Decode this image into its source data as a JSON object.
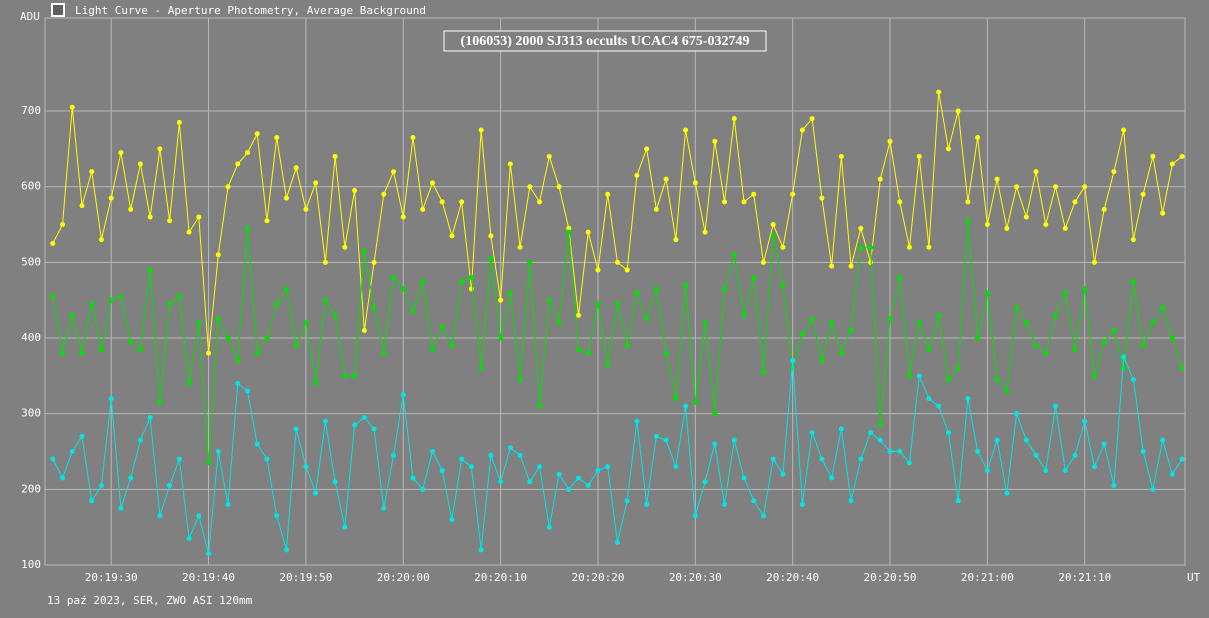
{
  "window_title": "Light Curve - Aperture Photometry, Average Background",
  "footer": "13 paź 2023, SER, ZWO ASI 120mm",
  "chart_data": {
    "type": "line",
    "title": "(106053) 2000 SJ313 occults UCAC4 675-032749",
    "y_label": "ADU",
    "x_label": "UT",
    "grid": true,
    "xlim": [
      73163.2,
      73280.3
    ],
    "ylim": [
      100,
      823
    ],
    "xticks": [
      {
        "value": 73170,
        "label": "20:19:30"
      },
      {
        "value": 73180,
        "label": "20:19:40"
      },
      {
        "value": 73190,
        "label": "20:19:50"
      },
      {
        "value": 73200,
        "label": "20:20:00"
      },
      {
        "value": 73210,
        "label": "20:20:10"
      },
      {
        "value": 73220,
        "label": "20:20:20"
      },
      {
        "value": 73230,
        "label": "20:20:30"
      },
      {
        "value": 73240,
        "label": "20:20:40"
      },
      {
        "value": 73250,
        "label": "20:20:50"
      },
      {
        "value": 73260,
        "label": "20:21:00"
      },
      {
        "value": 73270,
        "label": "20:21:10"
      }
    ],
    "yticks": [
      100,
      200,
      300,
      400,
      500,
      600,
      700
    ],
    "x": [
      73164,
      73165,
      73166,
      73167,
      73168,
      73169,
      73170,
      73171,
      73172,
      73173,
      73174,
      73175,
      73176,
      73177,
      73178,
      73179,
      73180,
      73181,
      73182,
      73183,
      73184,
      73185,
      73186,
      73187,
      73188,
      73189,
      73190,
      73191,
      73192,
      73193,
      73194,
      73195,
      73196,
      73197,
      73198,
      73199,
      73200,
      73201,
      73202,
      73203,
      73204,
      73205,
      73206,
      73207,
      73208,
      73209,
      73210,
      73211,
      73212,
      73213,
      73214,
      73215,
      73216,
      73217,
      73218,
      73219,
      73220,
      73221,
      73222,
      73223,
      73224,
      73225,
      73226,
      73227,
      73228,
      73229,
      73230,
      73231,
      73232,
      73233,
      73234,
      73235,
      73236,
      73237,
      73238,
      73239,
      73240,
      73241,
      73242,
      73243,
      73244,
      73245,
      73246,
      73247,
      73248,
      73249,
      73250,
      73251,
      73252,
      73253,
      73254,
      73255,
      73256,
      73257,
      73258,
      73259,
      73260,
      73261,
      73262,
      73263,
      73264,
      73265,
      73266,
      73267,
      73268,
      73269,
      73270,
      73271,
      73272,
      73273,
      73274,
      73275,
      73276,
      73277,
      73278,
      73279,
      73280
    ],
    "series": [
      {
        "color": "#ffff00",
        "values": [
          525,
          550,
          705,
          575,
          620,
          530,
          585,
          645,
          570,
          630,
          560,
          650,
          555,
          685,
          540,
          560,
          380,
          510,
          600,
          630,
          645,
          670,
          555,
          665,
          585,
          625,
          570,
          605,
          500,
          640,
          520,
          595,
          410,
          500,
          590,
          620,
          560,
          665,
          570,
          605,
          580,
          535,
          580,
          465,
          675,
          535,
          450,
          630,
          520,
          600,
          580,
          640,
          600,
          545,
          430,
          540,
          490,
          590,
          500,
          490,
          615,
          650,
          570,
          610,
          530,
          675,
          605,
          540,
          660,
          580,
          690,
          580,
          590,
          500,
          550,
          520,
          590,
          675,
          690,
          585,
          495,
          640,
          495,
          545,
          500,
          610,
          660,
          580,
          520,
          640,
          520,
          725,
          650,
          700,
          580,
          665,
          550,
          610,
          545,
          600,
          560,
          620,
          550,
          600,
          545,
          580,
          600,
          500,
          570,
          620,
          675,
          530,
          590,
          640,
          565,
          630,
          640
        ]
      },
      {
        "color": "#00e000",
        "values": [
          455,
          380,
          430,
          380,
          445,
          385,
          450,
          455,
          395,
          385,
          490,
          315,
          445,
          455,
          340,
          420,
          235,
          425,
          400,
          370,
          545,
          380,
          400,
          445,
          465,
          390,
          420,
          340,
          450,
          430,
          350,
          350,
          515,
          440,
          380,
          480,
          465,
          435,
          475,
          385,
          415,
          390,
          475,
          480,
          360,
          505,
          400,
          460,
          345,
          500,
          310,
          450,
          420,
          540,
          385,
          380,
          445,
          365,
          445,
          390,
          460,
          425,
          465,
          380,
          320,
          470,
          315,
          420,
          300,
          465,
          510,
          430,
          480,
          355,
          535,
          470,
          360,
          405,
          425,
          370,
          420,
          380,
          410,
          520,
          520,
          285,
          425,
          480,
          350,
          420,
          385,
          430,
          345,
          360,
          555,
          400,
          460,
          345,
          330,
          440,
          420,
          390,
          380,
          430,
          460,
          385,
          465,
          350,
          395,
          410,
          360,
          475,
          390,
          420,
          440,
          400,
          360
        ]
      },
      {
        "color": "#00e5e5",
        "values": [
          240,
          215,
          250,
          270,
          185,
          205,
          320,
          175,
          215,
          265,
          295,
          165,
          205,
          240,
          135,
          165,
          115,
          250,
          180,
          340,
          330,
          260,
          240,
          165,
          120,
          280,
          230,
          195,
          290,
          210,
          150,
          285,
          295,
          280,
          175,
          245,
          325,
          215,
          200,
          250,
          225,
          160,
          240,
          230,
          120,
          245,
          210,
          255,
          245,
          210,
          230,
          150,
          220,
          200,
          215,
          205,
          225,
          230,
          130,
          185,
          290,
          180,
          270,
          265,
          230,
          310,
          165,
          210,
          260,
          180,
          265,
          215,
          185,
          165,
          240,
          220,
          370,
          180,
          275,
          240,
          215,
          280,
          185,
          240,
          275,
          265,
          250,
          250,
          235,
          350,
          320,
          310,
          275,
          185,
          320,
          250,
          225,
          265,
          195,
          300,
          265,
          245,
          225,
          310,
          225,
          245,
          290,
          230,
          260,
          205,
          375,
          345,
          250,
          200,
          265,
          220,
          240
        ]
      }
    ]
  }
}
